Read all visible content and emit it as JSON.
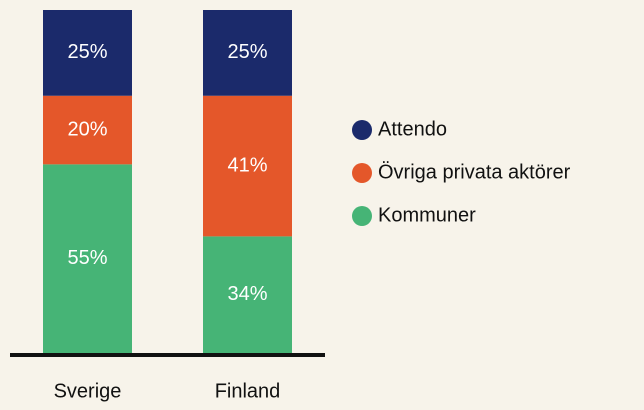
{
  "chart_data": {
    "type": "stacked_bar",
    "categories": [
      "Sverige",
      "Finland"
    ],
    "series": [
      {
        "name": "Attendo",
        "color": "#1b2a6b",
        "values": [
          25,
          25
        ],
        "value_labels": [
          "25%",
          "25%"
        ]
      },
      {
        "name": "Övriga privata aktörer",
        "color": "#e4572a",
        "values": [
          20,
          41
        ],
        "value_labels": [
          "20%",
          "41%"
        ]
      },
      {
        "name": "Kommuner",
        "color": "#46b476",
        "values": [
          55,
          34
        ],
        "value_labels": [
          "55%",
          "34%"
        ]
      }
    ],
    "legend": "right"
  }
}
